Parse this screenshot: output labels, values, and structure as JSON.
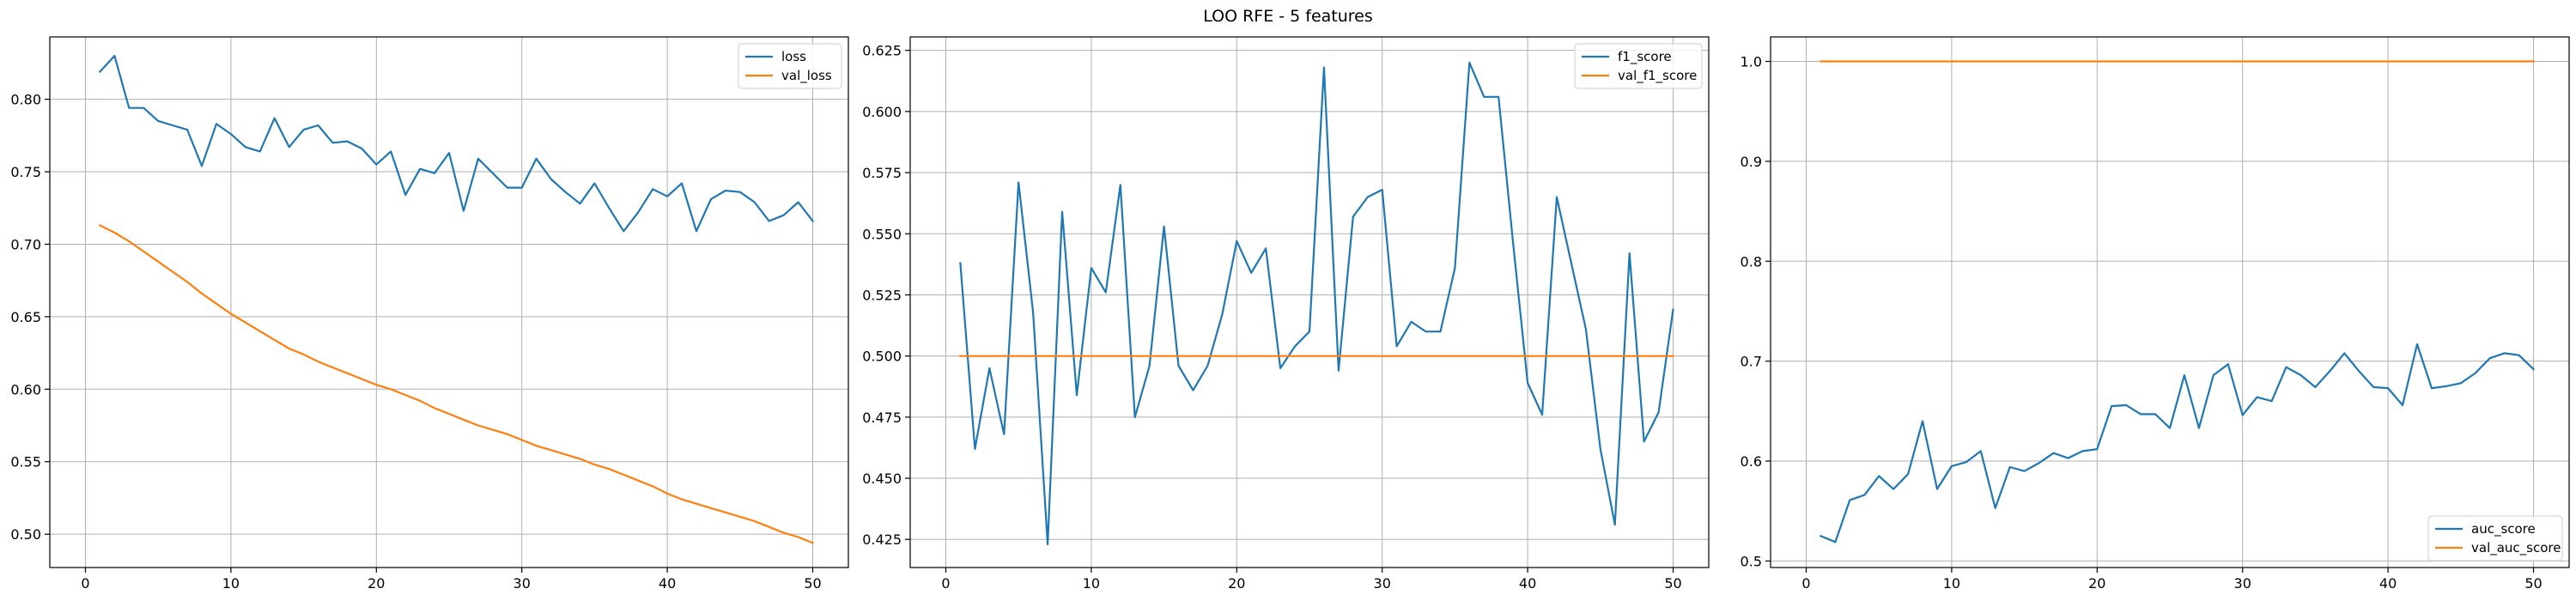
{
  "suptitle": "LOO RFE - 5 features",
  "colors": {
    "series1": "#1f77b4",
    "series2": "#ff7f0e",
    "grid": "#b0b0b0",
    "axis": "#000000"
  },
  "chart_data": [
    {
      "type": "line",
      "title": "",
      "xlabel": "",
      "ylabel": "",
      "xlim": [
        -2.45,
        52.45
      ],
      "ylim": [
        0.477,
        0.843
      ],
      "xticks": [
        0,
        10,
        20,
        30,
        40,
        50
      ],
      "xtick_labels": [
        "0",
        "10",
        "20",
        "30",
        "40",
        "50"
      ],
      "yticks": [
        0.5,
        0.55,
        0.6,
        0.65,
        0.7,
        0.75,
        0.8
      ],
      "ytick_labels": [
        "0.50",
        "0.55",
        "0.60",
        "0.65",
        "0.70",
        "0.75",
        "0.80"
      ],
      "grid": true,
      "legend_position": "top-right",
      "series": [
        {
          "name": "loss",
          "color": "#1f77b4",
          "x": [
            1,
            2,
            3,
            4,
            5,
            6,
            7,
            8,
            9,
            10,
            11,
            12,
            13,
            14,
            15,
            16,
            17,
            18,
            19,
            20,
            21,
            22,
            23,
            24,
            25,
            26,
            27,
            28,
            29,
            30,
            31,
            32,
            33,
            34,
            35,
            36,
            37,
            38,
            39,
            40,
            41,
            42,
            43,
            44,
            45,
            46,
            47,
            48,
            49,
            50
          ],
          "y": [
            0.819,
            0.83,
            0.794,
            0.794,
            0.785,
            0.782,
            0.779,
            0.754,
            0.783,
            0.776,
            0.767,
            0.764,
            0.787,
            0.767,
            0.779,
            0.782,
            0.77,
            0.771,
            0.766,
            0.755,
            0.764,
            0.734,
            0.752,
            0.749,
            0.763,
            0.723,
            0.759,
            0.749,
            0.739,
            0.739,
            0.759,
            0.745,
            0.736,
            0.728,
            0.742,
            0.725,
            0.709,
            0.722,
            0.738,
            0.733,
            0.742,
            0.709,
            0.731,
            0.737,
            0.736,
            0.729,
            0.716,
            0.72,
            0.729,
            0.716
          ]
        },
        {
          "name": "val_loss",
          "color": "#ff7f0e",
          "x": [
            1,
            2,
            3,
            4,
            5,
            6,
            7,
            8,
            9,
            10,
            11,
            12,
            13,
            14,
            15,
            16,
            17,
            18,
            19,
            20,
            21,
            22,
            23,
            24,
            25,
            26,
            27,
            28,
            29,
            30,
            31,
            32,
            33,
            34,
            35,
            36,
            37,
            38,
            39,
            40,
            41,
            42,
            43,
            44,
            45,
            46,
            47,
            48,
            49,
            50
          ],
          "y": [
            0.713,
            0.708,
            0.702,
            0.695,
            0.688,
            0.681,
            0.674,
            0.666,
            0.659,
            0.652,
            0.646,
            0.64,
            0.634,
            0.628,
            0.624,
            0.619,
            0.615,
            0.611,
            0.607,
            0.603,
            0.6,
            0.596,
            0.592,
            0.587,
            0.583,
            0.579,
            0.575,
            0.572,
            0.569,
            0.565,
            0.561,
            0.558,
            0.555,
            0.552,
            0.548,
            0.545,
            0.541,
            0.537,
            0.533,
            0.528,
            0.524,
            0.521,
            0.518,
            0.515,
            0.512,
            0.509,
            0.505,
            0.501,
            0.498,
            0.494
          ]
        }
      ]
    },
    {
      "type": "line",
      "title": "",
      "xlabel": "",
      "ylabel": "",
      "xlim": [
        -2.45,
        52.45
      ],
      "ylim": [
        0.4135,
        0.6305
      ],
      "xticks": [
        0,
        10,
        20,
        30,
        40,
        50
      ],
      "xtick_labels": [
        "0",
        "10",
        "20",
        "30",
        "40",
        "50"
      ],
      "yticks": [
        0.425,
        0.45,
        0.475,
        0.5,
        0.525,
        0.55,
        0.575,
        0.6,
        0.625
      ],
      "ytick_labels": [
        "0.425",
        "0.450",
        "0.475",
        "0.500",
        "0.525",
        "0.550",
        "0.575",
        "0.600",
        "0.625"
      ],
      "grid": true,
      "legend_position": "top-right",
      "series": [
        {
          "name": "f1_score",
          "color": "#1f77b4",
          "x": [
            1,
            2,
            3,
            4,
            5,
            6,
            7,
            8,
            9,
            10,
            11,
            12,
            13,
            14,
            15,
            16,
            17,
            18,
            19,
            20,
            21,
            22,
            23,
            24,
            25,
            26,
            27,
            28,
            29,
            30,
            31,
            32,
            33,
            34,
            35,
            36,
            37,
            38,
            39,
            40,
            41,
            42,
            43,
            44,
            45,
            46,
            47,
            48,
            49,
            50
          ],
          "y": [
            0.538,
            0.462,
            0.495,
            0.468,
            0.571,
            0.518,
            0.423,
            0.559,
            0.484,
            0.536,
            0.526,
            0.57,
            0.475,
            0.496,
            0.553,
            0.496,
            0.486,
            0.496,
            0.517,
            0.547,
            0.534,
            0.544,
            0.495,
            0.504,
            0.51,
            0.618,
            0.494,
            0.557,
            0.565,
            0.568,
            0.504,
            0.514,
            0.51,
            0.51,
            0.536,
            0.62,
            0.606,
            0.606,
            0.546,
            0.489,
            0.476,
            0.565,
            0.538,
            0.511,
            0.462,
            0.431,
            0.542,
            0.465,
            0.477,
            0.519
          ]
        },
        {
          "name": "val_f1_score",
          "color": "#ff7f0e",
          "x": [
            1,
            50
          ],
          "y": [
            0.5,
            0.5
          ]
        }
      ]
    },
    {
      "type": "line",
      "title": "",
      "xlabel": "",
      "ylabel": "",
      "xlim": [
        -2.45,
        52.45
      ],
      "ylim": [
        0.4935,
        1.0245
      ],
      "xticks": [
        0,
        10,
        20,
        30,
        40,
        50
      ],
      "xtick_labels": [
        "0",
        "10",
        "20",
        "30",
        "40",
        "50"
      ],
      "yticks": [
        0.5,
        0.6,
        0.7,
        0.8,
        0.9,
        1.0
      ],
      "ytick_labels": [
        "0.5",
        "0.6",
        "0.7",
        "0.8",
        "0.9",
        "1.0"
      ],
      "grid": true,
      "legend_position": "bottom-right",
      "series": [
        {
          "name": "auc_score",
          "color": "#1f77b4",
          "x": [
            1,
            2,
            3,
            4,
            5,
            6,
            7,
            8,
            9,
            10,
            11,
            12,
            13,
            14,
            15,
            16,
            17,
            18,
            19,
            20,
            21,
            22,
            23,
            24,
            25,
            26,
            27,
            28,
            29,
            30,
            31,
            32,
            33,
            34,
            35,
            36,
            37,
            38,
            39,
            40,
            41,
            42,
            43,
            44,
            45,
            46,
            47,
            48,
            49,
            50
          ],
          "y": [
            0.525,
            0.519,
            0.561,
            0.566,
            0.585,
            0.572,
            0.587,
            0.64,
            0.572,
            0.595,
            0.599,
            0.61,
            0.553,
            0.594,
            0.59,
            0.598,
            0.608,
            0.603,
            0.61,
            0.612,
            0.655,
            0.656,
            0.647,
            0.647,
            0.633,
            0.686,
            0.633,
            0.686,
            0.697,
            0.646,
            0.664,
            0.66,
            0.694,
            0.686,
            0.674,
            0.69,
            0.708,
            0.69,
            0.674,
            0.673,
            0.656,
            0.717,
            0.673,
            0.675,
            0.678,
            0.688,
            0.703,
            0.708,
            0.706,
            0.692
          ]
        },
        {
          "name": "val_auc_score",
          "color": "#ff7f0e",
          "x": [
            1,
            50
          ],
          "y": [
            1.0,
            1.0
          ]
        }
      ]
    }
  ]
}
